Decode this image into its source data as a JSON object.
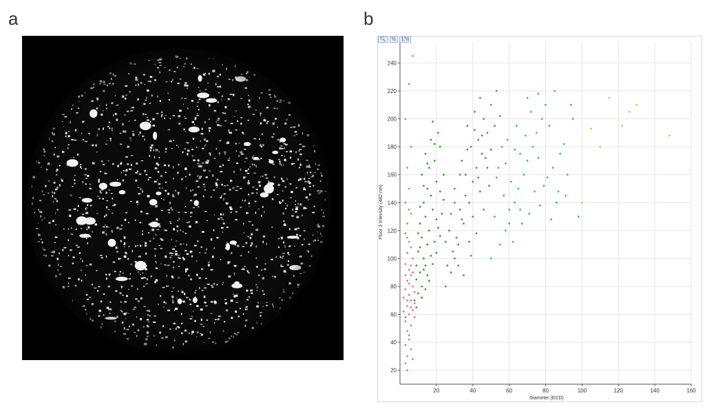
{
  "panels": {
    "a_label": "a",
    "b_label": "b"
  },
  "toolbar": {
    "zoom_icon": "magnifier-icon",
    "btn_2": "½",
    "btn_3": "1:½"
  },
  "colors": {
    "micrograph_bg": "#000000",
    "particle": "#ffffff",
    "cluster_1": "#e07878",
    "cluster_2": "#2aa02a",
    "cluster_3": "#9a55c0",
    "cluster_4": "#30b5b0",
    "cluster_5": "#c8c840",
    "grid": "#e6e6e6"
  },
  "chart_data": {
    "type": "scatter",
    "title": "",
    "xlabel": "Diameter (ECD)",
    "ylabel": "Fluor 3 Intensity (482 nm)",
    "xlim": [
      0,
      160
    ],
    "ylim": [
      10,
      255
    ],
    "xticks": [
      20,
      40,
      60,
      80,
      100,
      120,
      140,
      160
    ],
    "yticks": [
      20,
      40,
      60,
      80,
      100,
      120,
      140,
      160,
      180,
      200,
      220,
      240
    ],
    "grid": true,
    "legend": "none",
    "series": [
      {
        "color": "#e07878",
        "points": [
          [
            3,
            25
          ],
          [
            4,
            30
          ],
          [
            3,
            38
          ],
          [
            5,
            42
          ],
          [
            4,
            48
          ],
          [
            6,
            52
          ],
          [
            3,
            55
          ],
          [
            5,
            60
          ],
          [
            7,
            63
          ],
          [
            4,
            66
          ],
          [
            6,
            70
          ],
          [
            5,
            74
          ],
          [
            3,
            78
          ],
          [
            7,
            80
          ],
          [
            4,
            84
          ],
          [
            6,
            88
          ],
          [
            5,
            92
          ],
          [
            3,
            96
          ],
          [
            7,
            100
          ],
          [
            4,
            104
          ],
          [
            6,
            108
          ],
          [
            5,
            112
          ],
          [
            3,
            118
          ],
          [
            4,
            125
          ],
          [
            6,
            132
          ],
          [
            3,
            140
          ],
          [
            5,
            150
          ],
          [
            4,
            165
          ],
          [
            6,
            180
          ],
          [
            3,
            200
          ],
          [
            5,
            225
          ],
          [
            7,
            245
          ],
          [
            2,
            62
          ],
          [
            8,
            58
          ],
          [
            5,
            45
          ],
          [
            6,
            35
          ],
          [
            4,
            20
          ],
          [
            7,
            28
          ],
          [
            3,
            88
          ],
          [
            2,
            72
          ],
          [
            8,
            76
          ],
          [
            6,
            95
          ],
          [
            4,
            115
          ],
          [
            5,
            135
          ],
          [
            7,
            90
          ],
          [
            3,
            58
          ],
          [
            6,
            65
          ],
          [
            8,
            68
          ],
          [
            5,
            82
          ],
          [
            4,
            70
          ]
        ]
      },
      {
        "color": "#2aa02a",
        "points": [
          [
            8,
            70
          ],
          [
            10,
            75
          ],
          [
            12,
            80
          ],
          [
            9,
            85
          ],
          [
            11,
            90
          ],
          [
            14,
            95
          ],
          [
            13,
            100
          ],
          [
            10,
            105
          ],
          [
            15,
            110
          ],
          [
            12,
            115
          ],
          [
            16,
            120
          ],
          [
            11,
            125
          ],
          [
            14,
            130
          ],
          [
            18,
            135
          ],
          [
            13,
            140
          ],
          [
            17,
            145
          ],
          [
            15,
            150
          ],
          [
            20,
            155
          ],
          [
            12,
            160
          ],
          [
            16,
            165
          ],
          [
            19,
            170
          ],
          [
            14,
            175
          ],
          [
            22,
            180
          ],
          [
            17,
            185
          ],
          [
            21,
            190
          ],
          [
            18,
            198
          ],
          [
            9,
            95
          ],
          [
            10,
            118
          ],
          [
            11,
            108
          ],
          [
            13,
            92
          ],
          [
            15,
            88
          ],
          [
            17,
            102
          ],
          [
            19,
            112
          ],
          [
            21,
            122
          ],
          [
            23,
            132
          ],
          [
            24,
            142
          ],
          [
            20,
            128
          ],
          [
            22,
            148
          ],
          [
            24,
            160
          ],
          [
            9,
            65
          ],
          [
            12,
            72
          ],
          [
            14,
            78
          ],
          [
            16,
            84
          ],
          [
            18,
            96
          ],
          [
            20,
            104
          ],
          [
            22,
            116
          ],
          [
            11,
            137
          ],
          [
            13,
            152
          ],
          [
            15,
            168
          ],
          [
            19,
            182
          ]
        ]
      },
      {
        "color": "#9a55c0",
        "points": [
          [
            25,
            80
          ],
          [
            28,
            90
          ],
          [
            30,
            100
          ],
          [
            32,
            110
          ],
          [
            27,
            120
          ],
          [
            35,
            125
          ],
          [
            33,
            135
          ],
          [
            38,
            140
          ],
          [
            30,
            150
          ],
          [
            40,
            155
          ],
          [
            36,
            160
          ],
          [
            42,
            165
          ],
          [
            34,
            170
          ],
          [
            45,
            175
          ],
          [
            39,
            180
          ],
          [
            43,
            185
          ],
          [
            48,
            190
          ],
          [
            37,
            195
          ],
          [
            46,
            200
          ],
          [
            41,
            205
          ],
          [
            50,
            210
          ],
          [
            44,
            215
          ],
          [
            26,
            95
          ],
          [
            29,
            105
          ],
          [
            31,
            115
          ],
          [
            34,
            128
          ],
          [
            36,
            145
          ],
          [
            38,
            112
          ],
          [
            40,
            130
          ],
          [
            42,
            118
          ],
          [
            44,
            148
          ],
          [
            46,
            135
          ],
          [
            48,
            165
          ],
          [
            50,
            178
          ],
          [
            28,
            132
          ],
          [
            32,
            95
          ],
          [
            35,
            88
          ],
          [
            39,
            102
          ],
          [
            43,
            158
          ],
          [
            47,
            172
          ],
          [
            52,
            195
          ],
          [
            55,
            202
          ],
          [
            25,
            112
          ],
          [
            30,
            140
          ],
          [
            33,
            160
          ],
          [
            37,
            178
          ],
          [
            41,
            192
          ],
          [
            45,
            188
          ],
          [
            49,
            152
          ],
          [
            53,
            220
          ]
        ]
      },
      {
        "color": "#30b5b0",
        "points": [
          [
            50,
            100
          ],
          [
            55,
            110
          ],
          [
            58,
            120
          ],
          [
            52,
            130
          ],
          [
            60,
            135
          ],
          [
            63,
            140
          ],
          [
            57,
            145
          ],
          [
            65,
            150
          ],
          [
            61,
            155
          ],
          [
            68,
            160
          ],
          [
            54,
            165
          ],
          [
            70,
            170
          ],
          [
            66,
            175
          ],
          [
            73,
            180
          ],
          [
            59,
            185
          ],
          [
            75,
            190
          ],
          [
            64,
            195
          ],
          [
            78,
            200
          ],
          [
            72,
            205
          ],
          [
            80,
            210
          ],
          [
            85,
            220
          ],
          [
            62,
            112
          ],
          [
            67,
            125
          ],
          [
            71,
            132
          ],
          [
            74,
            148
          ],
          [
            77,
            138
          ],
          [
            81,
            158
          ],
          [
            84,
            165
          ],
          [
            88,
            175
          ],
          [
            90,
            182
          ],
          [
            56,
            180
          ],
          [
            69,
            188
          ],
          [
            76,
            172
          ],
          [
            82,
            195
          ],
          [
            86,
            140
          ],
          [
            92,
            160
          ],
          [
            95,
            200
          ],
          [
            98,
            130
          ],
          [
            53,
            158
          ],
          [
            58,
            168
          ],
          [
            63,
            178
          ],
          [
            70,
            215
          ],
          [
            76,
            218
          ],
          [
            83,
            128
          ],
          [
            87,
            148
          ],
          [
            91,
            145
          ],
          [
            94,
            210
          ],
          [
            60,
            125
          ],
          [
            66,
            135
          ],
          [
            79,
            152
          ]
        ]
      },
      {
        "color": "#c8c840",
        "points": [
          [
            105,
            193
          ],
          [
            115,
            215
          ],
          [
            122,
            195
          ],
          [
            130,
            210
          ],
          [
            148,
            188
          ],
          [
            100,
            140
          ],
          [
            110,
            180
          ],
          [
            126,
            205
          ]
        ]
      }
    ]
  }
}
